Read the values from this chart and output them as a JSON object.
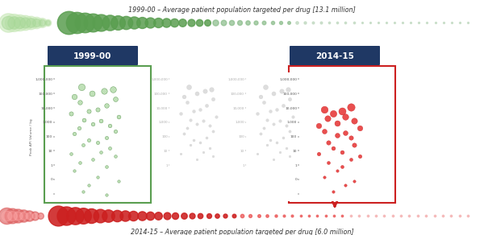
{
  "title_top": "1999-00 – Average patient population targeted per drug [13.1 million]",
  "title_bottom": "2014-15 – Average patient population targeted per drug [6.0 million]",
  "label_1999": "1999-00",
  "label_2014": "2014-15",
  "ylabel": "Peak API Volume / kg",
  "background_color": "#ffffff",
  "green_scatter_x": [
    0.3,
    0.55,
    0.42,
    0.65,
    0.22,
    0.68,
    0.28,
    0.58,
    0.48,
    0.38,
    0.18,
    0.72,
    0.33,
    0.52,
    0.43,
    0.62,
    0.27,
    0.68,
    0.22,
    0.58,
    0.38,
    0.48,
    0.32,
    0.62,
    0.52,
    0.18,
    0.68,
    0.43,
    0.28,
    0.58,
    0.22,
    0.48,
    0.72,
    0.38,
    0.32,
    0.58
  ],
  "green_scatter_y": [
    300000,
    150000,
    100000,
    200000,
    60000,
    40000,
    25000,
    15000,
    8000,
    6000,
    4000,
    2500,
    1500,
    1200,
    800,
    600,
    400,
    250,
    150,
    80,
    55,
    40,
    25,
    15,
    8,
    6,
    4,
    2.5,
    1.5,
    0.8,
    0.4,
    0.15,
    0.08,
    0.04,
    0.015,
    0.008
  ],
  "green_scatter_sizes": [
    35,
    28,
    25,
    30,
    22,
    18,
    16,
    16,
    14,
    14,
    14,
    12,
    12,
    12,
    11,
    11,
    10,
    10,
    10,
    9,
    9,
    9,
    8,
    8,
    7,
    7,
    7,
    7,
    7,
    7,
    6,
    6,
    6,
    6,
    6,
    6
  ],
  "red_scatter_x": [
    0.28,
    0.48,
    0.58,
    0.38,
    0.52,
    0.32,
    0.62,
    0.43,
    0.22,
    0.68,
    0.28,
    0.52,
    0.43,
    0.58,
    0.33,
    0.62,
    0.38,
    0.48,
    0.22,
    0.68,
    0.58,
    0.33,
    0.48,
    0.43,
    0.28,
    0.62,
    0.52,
    0.38
  ],
  "red_scatter_y": [
    8000,
    6000,
    12000,
    4000,
    2500,
    1800,
    1200,
    900,
    600,
    400,
    250,
    180,
    120,
    80,
    40,
    25,
    15,
    8,
    6,
    4,
    2.5,
    1.5,
    0.8,
    0.4,
    0.15,
    0.08,
    0.04,
    0.015
  ],
  "red_scatter_sizes": [
    38,
    42,
    45,
    35,
    30,
    28,
    28,
    25,
    22,
    22,
    18,
    18,
    18,
    15,
    15,
    15,
    12,
    12,
    10,
    10,
    8,
    8,
    8,
    6,
    6,
    6,
    6,
    6
  ],
  "green_color": "#b8ddb0",
  "green_dark": "#5a9e50",
  "green_edge": "#4a8a40",
  "red_color": "#e84040",
  "red_dark": "#cc2020",
  "gray_color": "#cccccc",
  "gray_edge": "#aaaaaa",
  "navy_color": "#1f3864",
  "bubble_top_sizes": [
    420,
    360,
    310,
    265,
    225,
    190,
    162,
    138,
    118,
    100,
    86,
    74,
    64,
    55,
    47,
    41,
    36,
    31,
    27,
    23,
    20,
    18,
    15,
    13,
    11,
    9,
    8,
    7,
    6,
    5,
    4,
    4,
    3,
    3,
    3,
    3,
    2,
    2,
    2,
    2,
    2,
    2,
    2,
    2,
    2,
    2,
    2,
    2,
    2,
    2
  ],
  "bubble_bottom_sizes": [
    320,
    275,
    235,
    200,
    170,
    145,
    123,
    105,
    89,
    76,
    65,
    55,
    47,
    40,
    34,
    29,
    25,
    21,
    18,
    15,
    13,
    11,
    10,
    8,
    7,
    6,
    5,
    4,
    4,
    3,
    3,
    3,
    3,
    3,
    3,
    3,
    3,
    3,
    3,
    3,
    3,
    3,
    3,
    3,
    3,
    3,
    3,
    3,
    3,
    3
  ]
}
